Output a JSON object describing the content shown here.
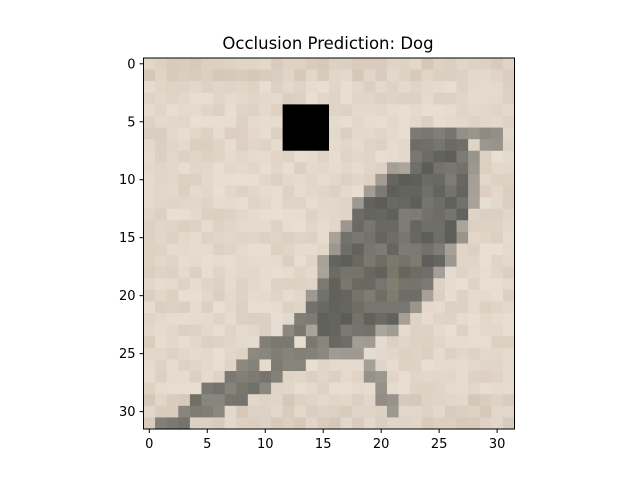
{
  "figure": {
    "title": "Occlusion Prediction: Dog",
    "image": {
      "grid": [
        32,
        32
      ],
      "occlusion_patch_cells": {
        "x": [
          12,
          15
        ],
        "y": [
          4,
          7
        ]
      },
      "subject": "bird on pale gravel background",
      "colors": {
        "background_light": "#e9dfd3",
        "background_mid": "#d2c4b4",
        "bird_dark": "#5d5d58",
        "bird_mid": "#7e7c74",
        "patch": "#000000"
      }
    },
    "xaxis": {
      "ticks": [
        0,
        5,
        10,
        15,
        20,
        25,
        30
      ],
      "range": [
        -0.5,
        31.5
      ]
    },
    "yaxis": {
      "ticks": [
        0,
        5,
        10,
        15,
        20,
        25,
        30
      ],
      "range": [
        -0.5,
        31.5
      ],
      "inverted": true
    }
  },
  "x_tick_labels": [
    "0",
    "5",
    "10",
    "15",
    "20",
    "25",
    "30"
  ],
  "y_tick_labels": [
    "0",
    "5",
    "10",
    "15",
    "20",
    "25",
    "30"
  ]
}
